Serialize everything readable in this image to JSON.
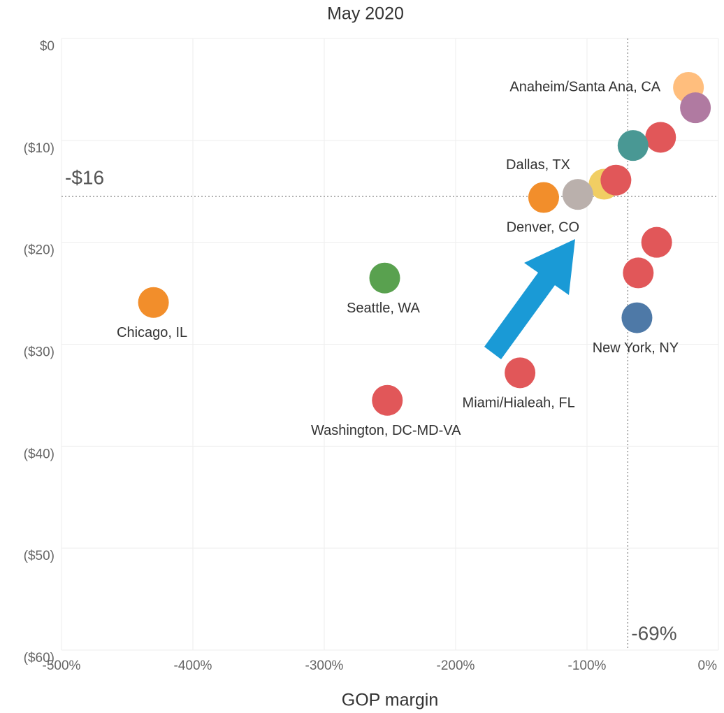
{
  "chart_data": {
    "type": "scatter",
    "title": "May 2020",
    "x_label": "GOP margin",
    "xlim": [
      -500,
      0
    ],
    "ylim": [
      -60,
      0
    ],
    "xticks": [
      {
        "value": -500,
        "label": "-500%"
      },
      {
        "value": -400,
        "label": "-400%"
      },
      {
        "value": -300,
        "label": "-300%"
      },
      {
        "value": -200,
        "label": "-200%"
      },
      {
        "value": -100,
        "label": "-100%"
      },
      {
        "value": 0,
        "label": "0%"
      }
    ],
    "yticks": [
      {
        "value": 0,
        "label": "$0"
      },
      {
        "value": -10,
        "label": "($10)"
      },
      {
        "value": -20,
        "label": "($20)"
      },
      {
        "value": -30,
        "label": "($30)"
      },
      {
        "value": -40,
        "label": "($40)"
      },
      {
        "value": -50,
        "label": "($50)"
      },
      {
        "value": -60,
        "label": "($60)"
      }
    ],
    "grid": true,
    "reference_lines": {
      "x": {
        "value": -69,
        "label": "-69%"
      },
      "y": {
        "value": -15.5,
        "label": "-$16"
      }
    },
    "points": [
      {
        "x": -22.8,
        "y": -4.8,
        "color": "#ffbe7d",
        "label": "Anaheim/Santa Ana, CA"
      },
      {
        "x": -17.5,
        "y": -6.8,
        "color": "#b07aa1"
      },
      {
        "x": -44,
        "y": -9.7,
        "color": "#e15759"
      },
      {
        "x": -65,
        "y": -10.5,
        "color": "#499894"
      },
      {
        "x": -87,
        "y": -14.3,
        "color": "#f1ce63"
      },
      {
        "x": -78,
        "y": -13.9,
        "color": "#e15759"
      },
      {
        "x": -133,
        "y": -15.6,
        "color": "#f28e2b",
        "label": "Dallas, TX"
      },
      {
        "x": -107,
        "y": -15.3,
        "color": "#bab0ac",
        "label": "Denver, CO"
      },
      {
        "x": -47,
        "y": -20,
        "color": "#e15759"
      },
      {
        "x": -61,
        "y": -23,
        "color": "#e15759"
      },
      {
        "x": -62,
        "y": -27.4,
        "color": "#4e79a7",
        "label": "New York, NY"
      },
      {
        "x": -151,
        "y": -32.8,
        "color": "#e15759",
        "label": "Miami/Hialeah, FL"
      },
      {
        "x": -254,
        "y": -23.5,
        "color": "#59a14f",
        "label": "Seattle, WA"
      },
      {
        "x": -430,
        "y": -25.9,
        "color": "#f28e2b",
        "label": "Chicago, IL"
      },
      {
        "x": -252,
        "y": -35.5,
        "color": "#e15759",
        "label": "Washington, DC-MD-VA"
      }
    ]
  }
}
